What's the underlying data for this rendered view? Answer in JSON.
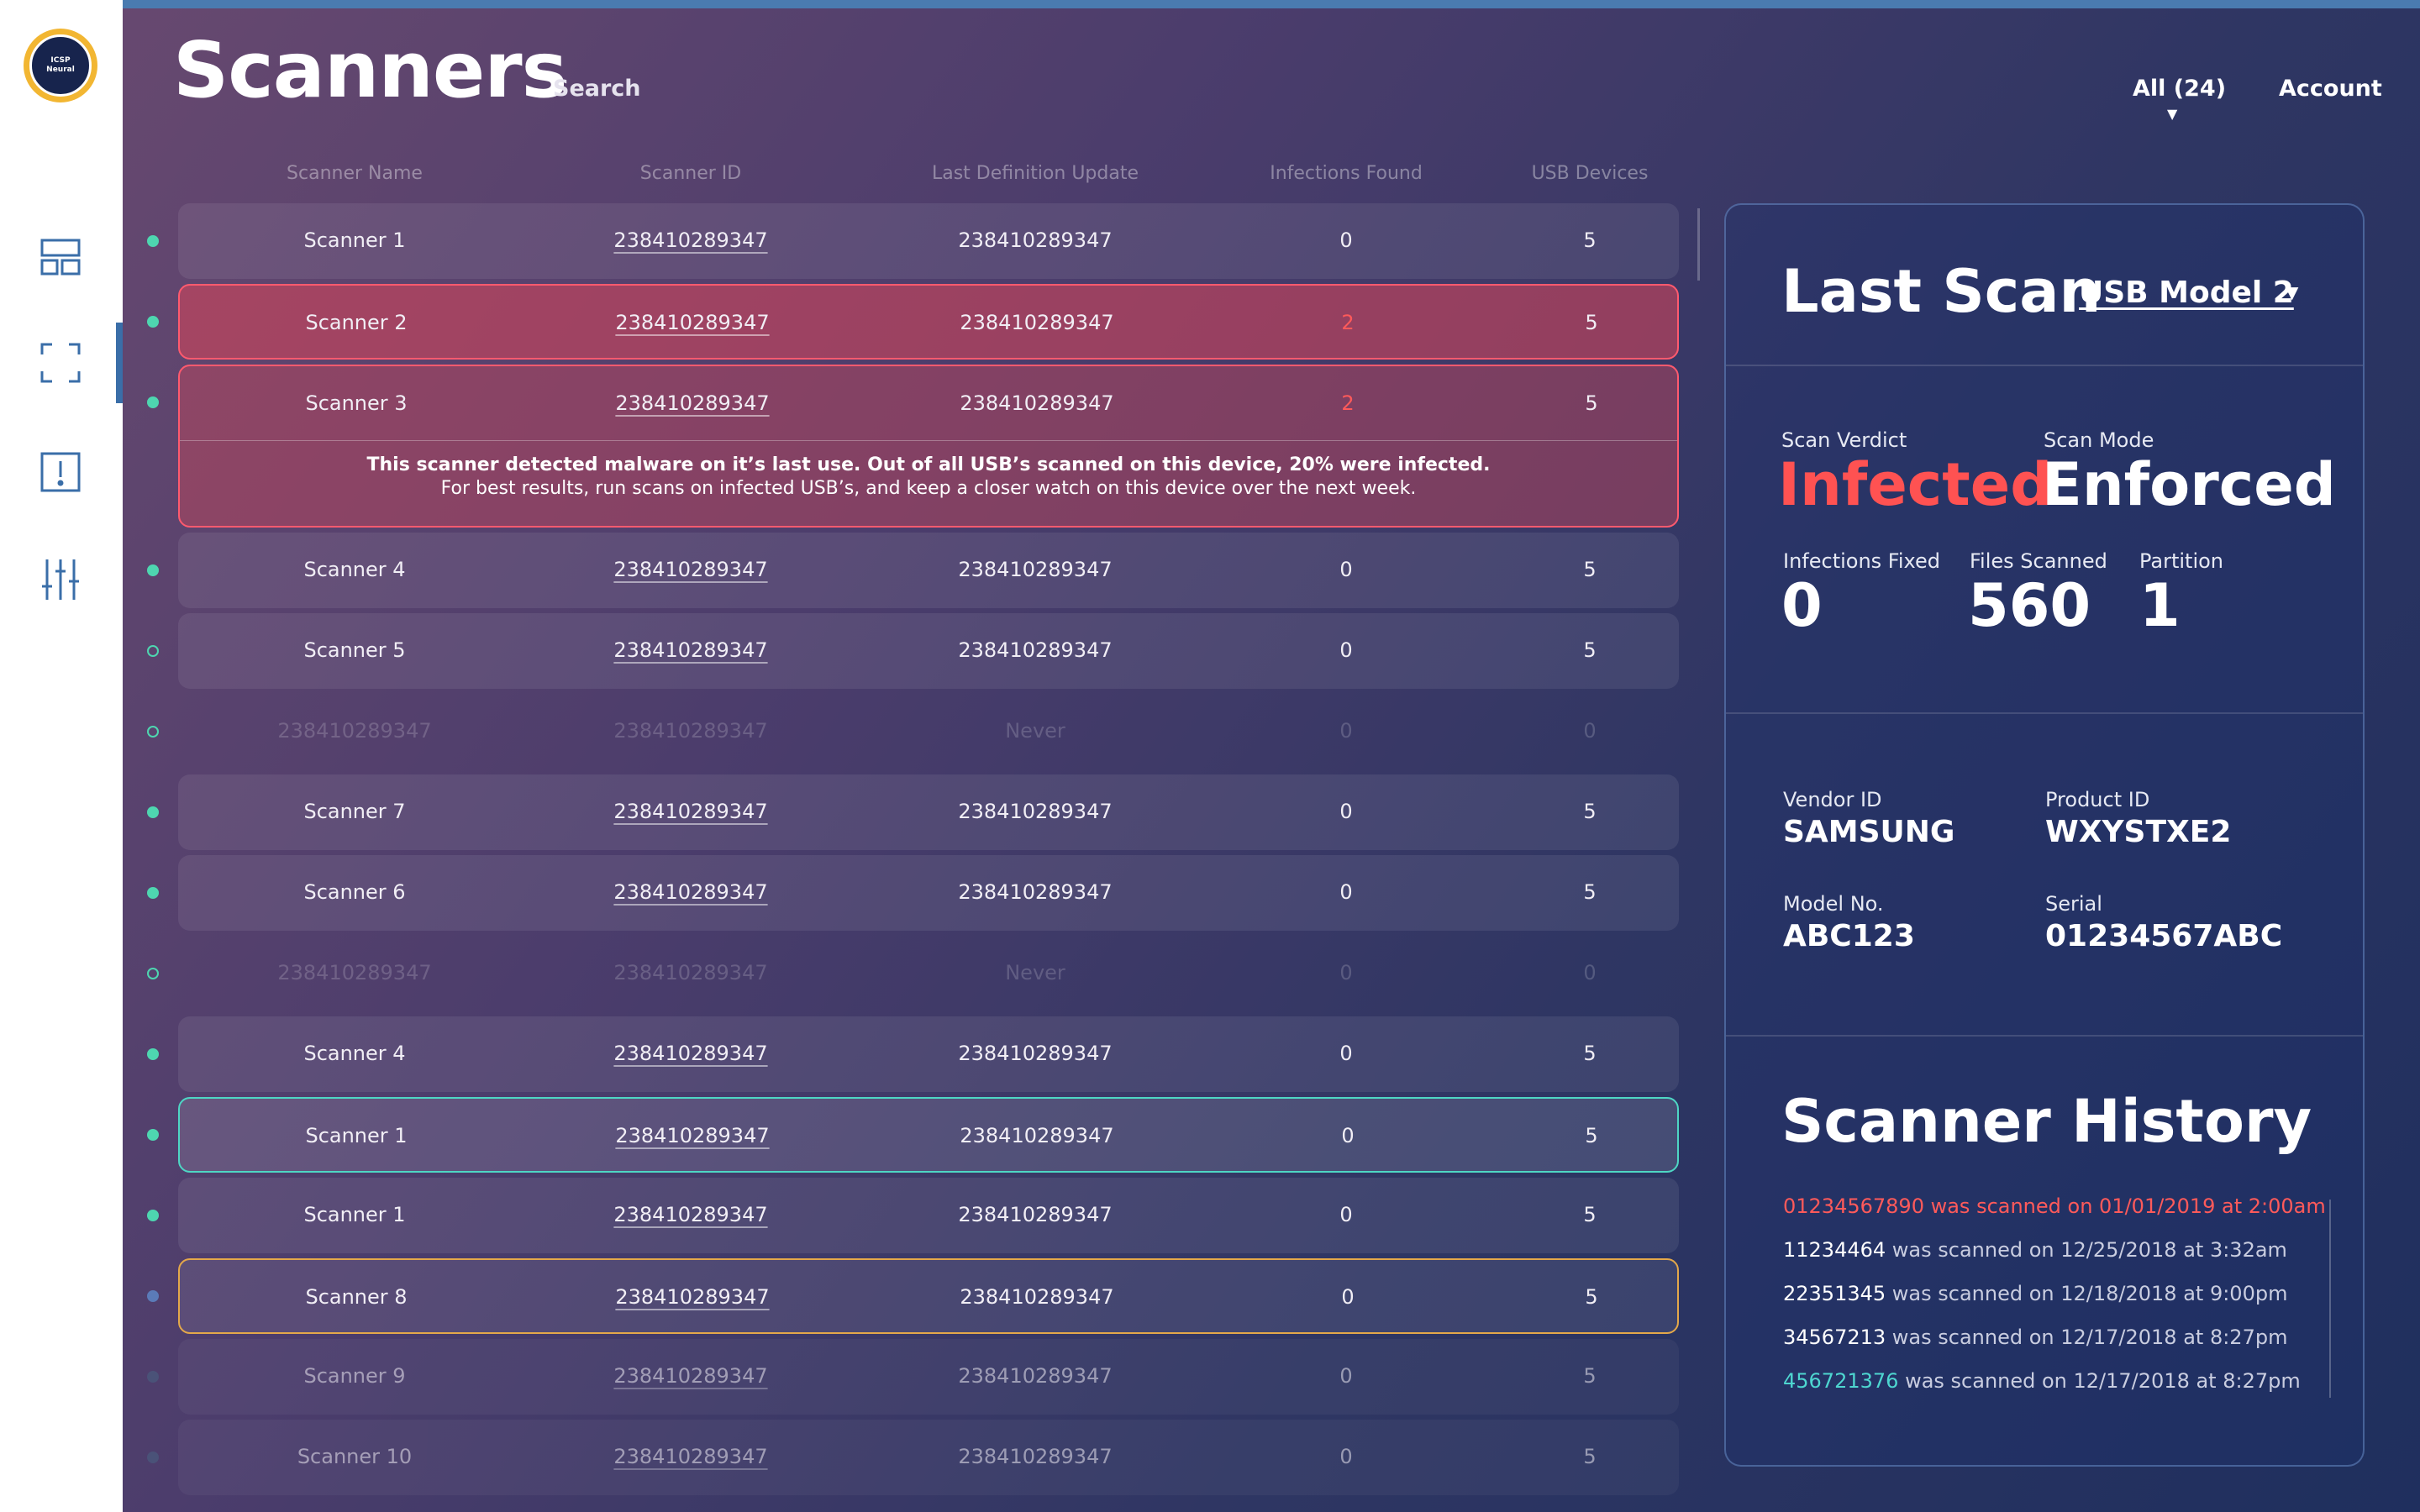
{
  "header": {
    "title": "Scanners",
    "search_label": "Search",
    "filter_label": "All (24)",
    "account_label": "Account"
  },
  "logo": {
    "line1": "ICSP",
    "line2": "Neural"
  },
  "sidebar": {
    "items": [
      {
        "icon": "dashboard-icon"
      },
      {
        "icon": "scan-frame-icon"
      },
      {
        "icon": "alert-icon"
      },
      {
        "icon": "sliders-icon"
      }
    ]
  },
  "table": {
    "columns": [
      "Scanner Name",
      "Scanner ID",
      "Last Definition Update",
      "Infections Found",
      "USB Devices"
    ],
    "rows": [
      {
        "name": "Scanner 1",
        "id": "238410289347",
        "def": "238410289347",
        "infections": "0",
        "usb": "5"
      },
      {
        "name": "Scanner 2",
        "id": "238410289347",
        "def": "238410289347",
        "infections": "2",
        "usb": "5"
      },
      {
        "name": "Scanner 3",
        "id": "238410289347",
        "def": "238410289347",
        "infections": "2",
        "usb": "5"
      },
      {
        "name": "Scanner 4",
        "id": "238410289347",
        "def": "238410289347",
        "infections": "0",
        "usb": "5"
      },
      {
        "name": "Scanner 5",
        "id": "238410289347",
        "def": "238410289347",
        "infections": "0",
        "usb": "5"
      },
      {
        "name": "238410289347",
        "id": "238410289347",
        "def": "Never",
        "infections": "0",
        "usb": "0"
      },
      {
        "name": "Scanner 7",
        "id": "238410289347",
        "def": "238410289347",
        "infections": "0",
        "usb": "5"
      },
      {
        "name": "Scanner 6",
        "id": "238410289347",
        "def": "238410289347",
        "infections": "0",
        "usb": "5"
      },
      {
        "name": "238410289347",
        "id": "238410289347",
        "def": "Never",
        "infections": "0",
        "usb": "0"
      },
      {
        "name": "Scanner 4",
        "id": "238410289347",
        "def": "238410289347",
        "infections": "0",
        "usb": "5"
      },
      {
        "name": "Scanner 1",
        "id": "238410289347",
        "def": "238410289347",
        "infections": "0",
        "usb": "5"
      },
      {
        "name": "Scanner 1",
        "id": "238410289347",
        "def": "238410289347",
        "infections": "0",
        "usb": "5"
      },
      {
        "name": "Scanner 8",
        "id": "238410289347",
        "def": "238410289347",
        "infections": "0",
        "usb": "5"
      },
      {
        "name": "Scanner 9",
        "id": "238410289347",
        "def": "238410289347",
        "infections": "0",
        "usb": "5"
      },
      {
        "name": "Scanner 10",
        "id": "238410289347",
        "def": "238410289347",
        "infections": "0",
        "usb": "5"
      }
    ],
    "alert": {
      "line1": "This scanner detected malware on it’s last  use. Out of all USB’s scanned on this device, 20% were infected.",
      "line2": "For best results,  run scans on infected USB’s, and  keep a closer watch on this  device  over the next week."
    }
  },
  "panel": {
    "title": "Last Scan",
    "device_select": "USB Model 2",
    "scan_verdict_label": "Scan Verdict",
    "scan_verdict": "Infected",
    "scan_mode_label": "Scan Mode",
    "scan_mode": "Enforced",
    "infections_fixed_label": "Infections Fixed",
    "infections_fixed": "0",
    "files_scanned_label": "Files Scanned",
    "files_scanned": "560",
    "partition_label": "Partition",
    "partition": "1",
    "vendor_label": "Vendor ID",
    "vendor": "SAMSUNG",
    "product_label": "Product  ID",
    "product": "WXYSTXE2",
    "model_label": "Model No.",
    "model": "ABC123",
    "serial_label": "Serial",
    "serial": "01234567ABC",
    "history_title": "Scanner History",
    "history": [
      {
        "id": "01234567890",
        "text": " was scanned on 01/01/2019 at 2:00am"
      },
      {
        "id": "11234464",
        "text": " was scanned on 12/25/2018 at 3:32am"
      },
      {
        "id": "22351345",
        "text": " was scanned on 12/18/2018 at 9:00pm"
      },
      {
        "id": "34567213",
        "text": " was scanned on 12/17/2018 at 8:27pm"
      },
      {
        "id": "456721376",
        "text": " was scanned on 12/17/2018 at 8:27pm"
      }
    ]
  },
  "colors": {
    "infected_red": "#ff5252",
    "online_green": "#4ed6b0",
    "selected_teal": "#4ed6c4",
    "warning_amber": "#e4a84a",
    "accent_blue": "#3a6ea8"
  }
}
